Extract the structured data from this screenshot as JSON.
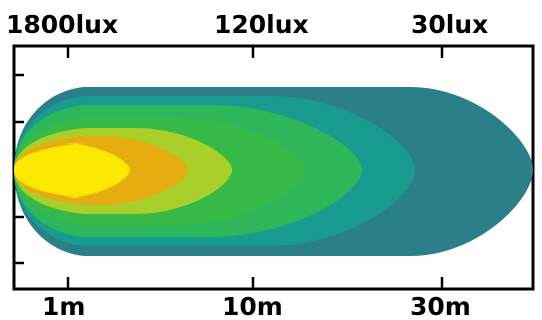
{
  "chart_data": {
    "type": "heatmap",
    "title": "",
    "top_labels": [
      "1800lux",
      "120lux",
      "30lux"
    ],
    "bottom_labels": [
      "1m",
      "10m",
      "30m"
    ],
    "contour_levels": [
      {
        "level": 1,
        "color": "#2a7f88"
      },
      {
        "level": 2,
        "color": "#1a9b8f"
      },
      {
        "level": 3,
        "color": "#2db65a"
      },
      {
        "level": 4,
        "color": "#36b946"
      },
      {
        "level": 5,
        "color": "#a9cf2a"
      },
      {
        "level": 6,
        "color": "#e6ad10"
      },
      {
        "level": 7,
        "color": "#fce800"
      }
    ],
    "frame_color": "#000000",
    "grid": false
  }
}
